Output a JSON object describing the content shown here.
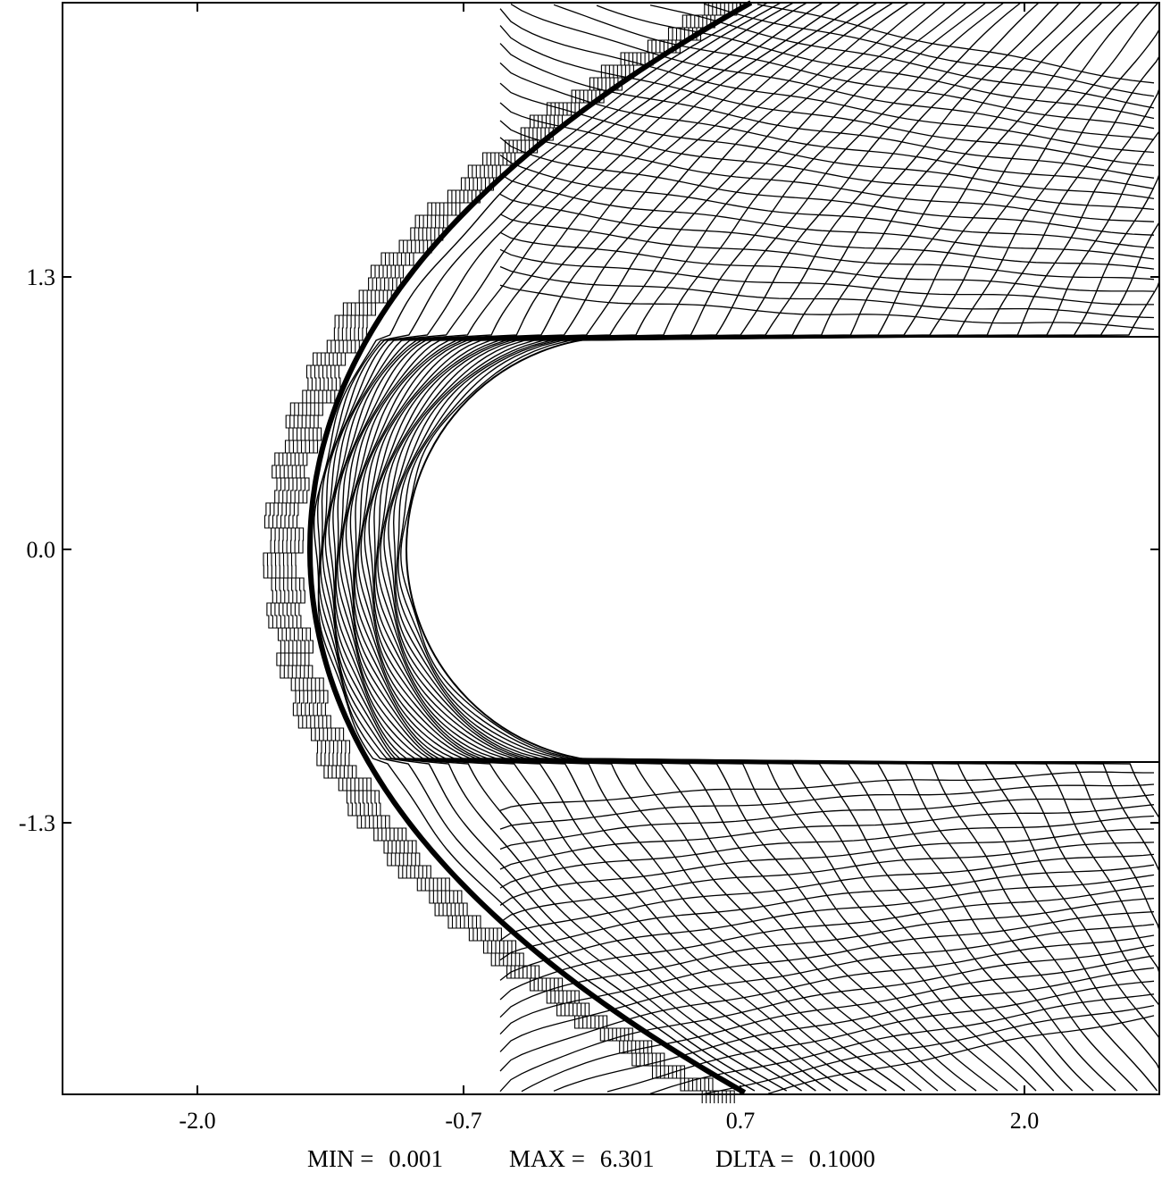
{
  "chart_data": {
    "type": "contour",
    "title": "",
    "xlabel": "",
    "ylabel": "",
    "x_ticks": [
      "-2.0",
      "-0.7",
      "0.7",
      "2.0"
    ],
    "x_tick_values": [
      -2.0,
      -0.7,
      0.7,
      2.0
    ],
    "y_ticks": [
      "1.3",
      "0.0",
      "-1.3"
    ],
    "y_tick_values": [
      1.3,
      0.0,
      -1.3
    ],
    "xlim": [
      -2.7,
      2.7
    ],
    "ylim": [
      -2.6,
      2.6
    ],
    "grid": false,
    "contour_min": 0.001,
    "contour_max": 6.301,
    "contour_delta": 0.1,
    "body": {
      "shape": "blunt-body",
      "nose_x": -0.7,
      "half_width": 1.0
    },
    "shock": {
      "apex_x": -1.25,
      "top_x": 0.0,
      "bottom_x": 0.0
    },
    "stats": {
      "min_label": "MIN =",
      "min_value": "0.001",
      "max_label": "MAX =",
      "max_value": "6.301",
      "delta_label": "DLTA =",
      "delta_value": "0.1000"
    }
  }
}
